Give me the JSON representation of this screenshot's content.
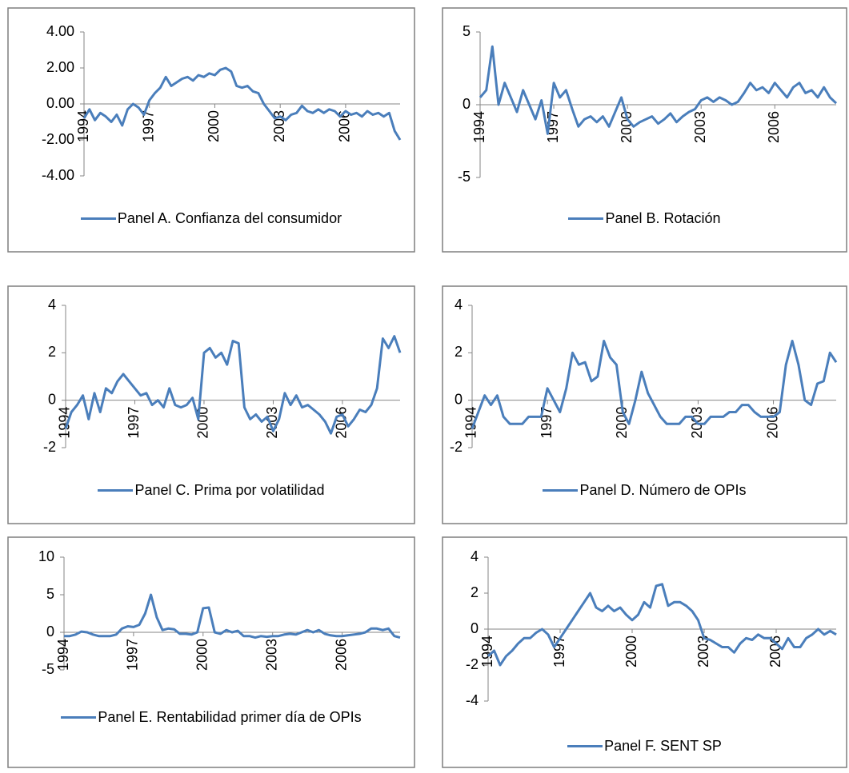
{
  "chart_data": [
    {
      "type": "line",
      "x": [
        1994,
        1994.25,
        1994.5,
        1994.75,
        1995,
        1995.25,
        1995.5,
        1995.75,
        1996,
        1996.25,
        1996.5,
        1996.75,
        1997,
        1997.25,
        1997.5,
        1997.75,
        1998,
        1998.25,
        1998.5,
        1998.75,
        1999,
        1999.25,
        1999.5,
        1999.75,
        2000,
        2000.25,
        2000.5,
        2000.75,
        2001,
        2001.25,
        2001.5,
        2001.75,
        2002,
        2002.25,
        2002.5,
        2002.75,
        2003,
        2003.25,
        2003.5,
        2003.75,
        2004,
        2004.25,
        2004.5,
        2004.75,
        2005,
        2005.25,
        2005.5,
        2005.75,
        2006,
        2006.25,
        2006.5,
        2006.75,
        2007,
        2007.25,
        2007.5,
        2007.75,
        2008,
        2008.25,
        2008.5
      ],
      "series": [
        {
          "name": "Panel A. Confianza del consumidor",
          "color": "#4a7ebb",
          "values": [
            -0.8,
            -0.3,
            -0.9,
            -0.5,
            -0.7,
            -1.0,
            -0.6,
            -1.2,
            -0.3,
            0.0,
            -0.2,
            -0.6,
            0.2,
            0.6,
            0.9,
            1.5,
            1.0,
            1.2,
            1.4,
            1.5,
            1.3,
            1.6,
            1.5,
            1.7,
            1.6,
            1.9,
            2.0,
            1.8,
            1.0,
            0.9,
            1.0,
            0.7,
            0.6,
            0.0,
            -0.4,
            -0.8,
            -0.7,
            -0.9,
            -0.6,
            -0.5,
            -0.1,
            -0.4,
            -0.5,
            -0.3,
            -0.5,
            -0.3,
            -0.4,
            -0.7,
            -0.4,
            -0.6,
            -0.5,
            -0.7,
            -0.4,
            -0.6,
            -0.5,
            -0.7,
            -0.5,
            -1.5,
            -2.0
          ]
        }
      ],
      "xlim": [
        1994,
        2008.5
      ],
      "xticks": [
        1994,
        1997,
        2000,
        2003,
        2006
      ],
      "ylim": [
        -4,
        4
      ],
      "yticks": [
        {
          "value": -4,
          "label": "-4.00"
        },
        {
          "value": -2,
          "label": "-2.00"
        },
        {
          "value": 0,
          "label": "0.00"
        },
        {
          "value": 2,
          "label": "2.00"
        },
        {
          "value": 4,
          "label": "4.00"
        }
      ],
      "legend": "bottom"
    },
    {
      "type": "line",
      "x": [
        1994,
        1994.25,
        1994.5,
        1994.75,
        1995,
        1995.25,
        1995.5,
        1995.75,
        1996,
        1996.25,
        1996.5,
        1996.75,
        1997,
        1997.25,
        1997.5,
        1997.75,
        1998,
        1998.25,
        1998.5,
        1998.75,
        1999,
        1999.25,
        1999.5,
        1999.75,
        2000,
        2000.25,
        2000.5,
        2000.75,
        2001,
        2001.25,
        2001.5,
        2001.75,
        2002,
        2002.25,
        2002.5,
        2002.75,
        2003,
        2003.25,
        2003.5,
        2003.75,
        2004,
        2004.25,
        2004.5,
        2004.75,
        2005,
        2005.25,
        2005.5,
        2005.75,
        2006,
        2006.25,
        2006.5,
        2006.75,
        2007,
        2007.25,
        2007.5,
        2007.75,
        2008,
        2008.25,
        2008.5
      ],
      "series": [
        {
          "name": "Panel B. Rotación",
          "color": "#4a7ebb",
          "values": [
            0.5,
            1.0,
            4.0,
            0.0,
            1.5,
            0.5,
            -0.5,
            1.0,
            0.0,
            -1.0,
            0.3,
            -2.0,
            1.5,
            0.5,
            1.0,
            -0.3,
            -1.5,
            -1.0,
            -0.8,
            -1.2,
            -0.8,
            -1.5,
            -0.5,
            0.5,
            -1.0,
            -1.5,
            -1.2,
            -1.0,
            -0.8,
            -1.3,
            -1.0,
            -0.6,
            -1.2,
            -0.8,
            -0.5,
            -0.3,
            0.3,
            0.5,
            0.2,
            0.5,
            0.3,
            0.0,
            0.2,
            0.8,
            1.5,
            1.0,
            1.2,
            0.8,
            1.5,
            1.0,
            0.5,
            1.2,
            1.5,
            0.8,
            1.0,
            0.5,
            1.2,
            0.5,
            0.1
          ]
        }
      ],
      "xlim": [
        1994,
        2008.5
      ],
      "xticks": [
        1994,
        1997,
        2000,
        2003,
        2006
      ],
      "ylim": [
        -5,
        5
      ],
      "yticks": [
        -5,
        0,
        5
      ],
      "legend": "bottom"
    },
    {
      "type": "line",
      "x": [
        1994,
        1994.25,
        1994.5,
        1994.75,
        1995,
        1995.25,
        1995.5,
        1995.75,
        1996,
        1996.25,
        1996.5,
        1996.75,
        1997,
        1997.25,
        1997.5,
        1997.75,
        1998,
        1998.25,
        1998.5,
        1998.75,
        1999,
        1999.25,
        1999.5,
        1999.75,
        2000,
        2000.25,
        2000.5,
        2000.75,
        2001,
        2001.25,
        2001.5,
        2001.75,
        2002,
        2002.25,
        2002.5,
        2002.75,
        2003,
        2003.25,
        2003.5,
        2003.75,
        2004,
        2004.25,
        2004.5,
        2004.75,
        2005,
        2005.25,
        2005.5,
        2005.75,
        2006,
        2006.25,
        2006.5,
        2006.75,
        2007,
        2007.25,
        2007.5,
        2007.75,
        2008,
        2008.25,
        2008.5
      ],
      "series": [
        {
          "name": "Panel C. Prima por volatilidad",
          "color": "#4a7ebb",
          "values": [
            -1.2,
            -0.5,
            -0.2,
            0.2,
            -0.8,
            0.3,
            -0.5,
            0.5,
            0.3,
            0.8,
            1.1,
            0.8,
            0.5,
            0.2,
            0.3,
            -0.2,
            0.0,
            -0.3,
            0.5,
            -0.2,
            -0.3,
            -0.2,
            0.1,
            -0.8,
            2.0,
            2.2,
            1.8,
            2.0,
            1.5,
            2.5,
            2.4,
            -0.3,
            -0.8,
            -0.6,
            -0.9,
            -0.7,
            -1.3,
            -0.8,
            0.3,
            -0.2,
            0.2,
            -0.3,
            -0.2,
            -0.4,
            -0.6,
            -0.9,
            -1.4,
            -0.7,
            -0.6,
            -1.1,
            -0.8,
            -0.4,
            -0.5,
            -0.2,
            0.5,
            2.6,
            2.2,
            2.7,
            2.0
          ]
        }
      ],
      "xlim": [
        1994,
        2008.5
      ],
      "xticks": [
        1994,
        1997,
        2000,
        2003,
        2006
      ],
      "ylim": [
        -2,
        4
      ],
      "yticks": [
        -2,
        0,
        2,
        4
      ],
      "legend": "bottom"
    },
    {
      "type": "line",
      "x": [
        1994,
        1994.25,
        1994.5,
        1994.75,
        1995,
        1995.25,
        1995.5,
        1995.75,
        1996,
        1996.25,
        1996.5,
        1996.75,
        1997,
        1997.25,
        1997.5,
        1997.75,
        1998,
        1998.25,
        1998.5,
        1998.75,
        1999,
        1999.25,
        1999.5,
        1999.75,
        2000,
        2000.25,
        2000.5,
        2000.75,
        2001,
        2001.25,
        2001.5,
        2001.75,
        2002,
        2002.25,
        2002.5,
        2002.75,
        2003,
        2003.25,
        2003.5,
        2003.75,
        2004,
        2004.25,
        2004.5,
        2004.75,
        2005,
        2005.25,
        2005.5,
        2005.75,
        2006,
        2006.25,
        2006.5,
        2006.75,
        2007,
        2007.25,
        2007.5,
        2007.75,
        2008,
        2008.25,
        2008.5
      ],
      "series": [
        {
          "name": "Panel D. Número de OPIs",
          "color": "#4a7ebb",
          "values": [
            -1.2,
            -0.5,
            0.2,
            -0.2,
            0.2,
            -0.7,
            -1.0,
            -1.0,
            -1.0,
            -0.7,
            -0.7,
            -0.7,
            0.5,
            0.0,
            -0.5,
            0.5,
            2.0,
            1.5,
            1.6,
            0.8,
            1.0,
            2.5,
            1.8,
            1.5,
            -0.5,
            -1.0,
            0.0,
            1.2,
            0.3,
            -0.2,
            -0.7,
            -1.0,
            -1.0,
            -1.0,
            -0.7,
            -0.7,
            -1.0,
            -1.0,
            -0.7,
            -0.7,
            -0.7,
            -0.5,
            -0.5,
            -0.2,
            -0.2,
            -0.5,
            -0.7,
            -0.7,
            -0.7,
            -0.5,
            1.5,
            2.5,
            1.5,
            0.0,
            -0.2,
            0.7,
            0.8,
            2.0,
            1.6
          ]
        }
      ],
      "xlim": [
        1994,
        2008.5
      ],
      "xticks": [
        1994,
        1997,
        2000,
        2003,
        2006
      ],
      "ylim": [
        -2,
        4
      ],
      "yticks": [
        -2,
        0,
        2,
        4
      ],
      "legend": "bottom"
    },
    {
      "type": "line",
      "x": [
        1994,
        1994.25,
        1994.5,
        1994.75,
        1995,
        1995.25,
        1995.5,
        1995.75,
        1996,
        1996.25,
        1996.5,
        1996.75,
        1997,
        1997.25,
        1997.5,
        1997.75,
        1998,
        1998.25,
        1998.5,
        1998.75,
        1999,
        1999.25,
        1999.5,
        1999.75,
        2000,
        2000.25,
        2000.5,
        2000.75,
        2001,
        2001.25,
        2001.5,
        2001.75,
        2002,
        2002.25,
        2002.5,
        2002.75,
        2003,
        2003.25,
        2003.5,
        2003.75,
        2004,
        2004.25,
        2004.5,
        2004.75,
        2005,
        2005.25,
        2005.5,
        2005.75,
        2006,
        2006.25,
        2006.5,
        2006.75,
        2007,
        2007.25,
        2007.5,
        2007.75,
        2008,
        2008.25,
        2008.5
      ],
      "series": [
        {
          "name": "Panel E. Rentabilidad primer día de OPIs",
          "color": "#4a7ebb",
          "values": [
            -0.5,
            -0.5,
            -0.3,
            0.1,
            0.0,
            -0.3,
            -0.5,
            -0.5,
            -0.5,
            -0.3,
            0.5,
            0.8,
            0.7,
            1.0,
            2.5,
            5.0,
            2.0,
            0.3,
            0.5,
            0.4,
            -0.2,
            -0.2,
            -0.3,
            0.0,
            3.2,
            3.3,
            0.0,
            -0.2,
            0.3,
            0.0,
            0.2,
            -0.5,
            -0.5,
            -0.7,
            -0.5,
            -0.6,
            -0.5,
            -0.5,
            -0.3,
            -0.2,
            -0.3,
            0.0,
            0.3,
            0.0,
            0.3,
            -0.2,
            -0.4,
            -0.5,
            -0.5,
            -0.4,
            -0.3,
            -0.2,
            0.0,
            0.5,
            0.5,
            0.3,
            0.5,
            -0.5,
            -0.7
          ]
        }
      ],
      "xlim": [
        1994,
        2008.5
      ],
      "xticks": [
        1994,
        1997,
        2000,
        2003,
        2006
      ],
      "ylim": [
        -5,
        10
      ],
      "yticks": [
        -5,
        0,
        5,
        10
      ],
      "legend": "bottom"
    },
    {
      "type": "line",
      "x": [
        1994,
        1994.25,
        1994.5,
        1994.75,
        1995,
        1995.25,
        1995.5,
        1995.75,
        1996,
        1996.25,
        1996.5,
        1996.75,
        1997,
        1997.25,
        1997.5,
        1997.75,
        1998,
        1998.25,
        1998.5,
        1998.75,
        1999,
        1999.25,
        1999.5,
        1999.75,
        2000,
        2000.25,
        2000.5,
        2000.75,
        2001,
        2001.25,
        2001.5,
        2001.75,
        2002,
        2002.25,
        2002.5,
        2002.75,
        2003,
        2003.25,
        2003.5,
        2003.75,
        2004,
        2004.25,
        2004.5,
        2004.75,
        2005,
        2005.25,
        2005.5,
        2005.75,
        2006,
        2006.25,
        2006.5,
        2006.75,
        2007,
        2007.25,
        2007.5,
        2007.75,
        2008,
        2008.25,
        2008.5
      ],
      "series": [
        {
          "name": "Panel F. SENT SP",
          "color": "#4a7ebb",
          "values": [
            -1.5,
            -1.2,
            -2.0,
            -1.5,
            -1.2,
            -0.8,
            -0.5,
            -0.5,
            -0.2,
            0.0,
            -0.3,
            -1.0,
            -0.5,
            0.0,
            0.5,
            1.0,
            1.5,
            2.0,
            1.2,
            1.0,
            1.3,
            1.0,
            1.2,
            0.8,
            0.5,
            0.8,
            1.5,
            1.2,
            2.4,
            2.5,
            1.3,
            1.5,
            1.5,
            1.3,
            1.0,
            0.5,
            -0.5,
            -0.6,
            -0.8,
            -1.0,
            -1.0,
            -1.3,
            -0.8,
            -0.5,
            -0.6,
            -0.3,
            -0.5,
            -0.5,
            -0.8,
            -1.1,
            -0.5,
            -1.0,
            -1.0,
            -0.5,
            -0.3,
            0.0,
            -0.3,
            -0.1,
            -0.3
          ]
        }
      ],
      "xlim": [
        1994,
        2008.5
      ],
      "xticks": [
        1994,
        1997,
        2000,
        2003,
        2006
      ],
      "ylim": [
        -4,
        4
      ],
      "yticks": [
        -4,
        -2,
        0,
        2,
        4
      ],
      "legend": "bottom"
    }
  ]
}
